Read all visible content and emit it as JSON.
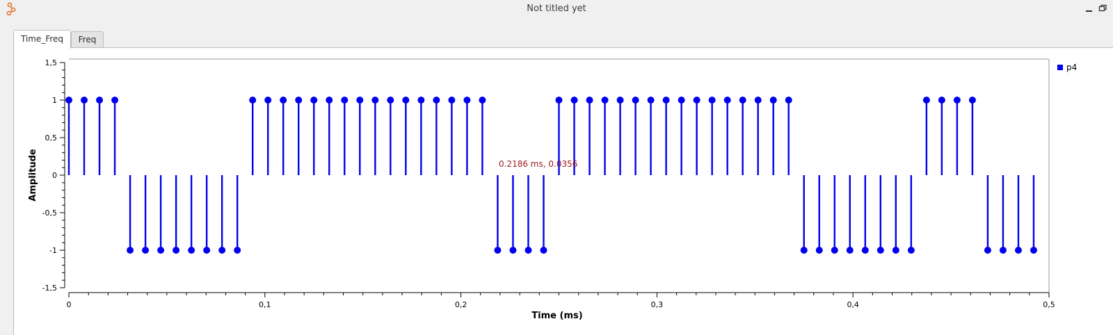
{
  "window": {
    "title": "Not titled yet",
    "icon": "gnuradio-icon"
  },
  "tabs": [
    {
      "label": "Time_Freq",
      "active": true
    },
    {
      "label": "Freq",
      "active": false
    }
  ],
  "colors": {
    "series": "#0000ee",
    "cursor_text": "#9b1a1a",
    "axis": "#000000"
  },
  "cursor_readout": "0.2186 ms, 0.0356",
  "chart_data": {
    "type": "scatter",
    "style": "stem",
    "xlabel": "Time (ms)",
    "ylabel": "Amplitude",
    "xlim": [
      0,
      0.5
    ],
    "ylim": [
      -1.5,
      1.5
    ],
    "x_ticks": [
      {
        "value": 0,
        "label": "0"
      },
      {
        "value": 0.1,
        "label": "0,1"
      },
      {
        "value": 0.2,
        "label": "0,2"
      },
      {
        "value": 0.3,
        "label": "0,3"
      },
      {
        "value": 0.4,
        "label": "0,4"
      },
      {
        "value": 0.5,
        "label": "0,5"
      }
    ],
    "y_ticks": [
      {
        "value": 1.5,
        "label": "1,5"
      },
      {
        "value": 1,
        "label": "1"
      },
      {
        "value": 0.5,
        "label": "0,5"
      },
      {
        "value": 0,
        "label": "0"
      },
      {
        "value": -0.5,
        "label": "-0,5"
      },
      {
        "value": -1,
        "label": "-1"
      },
      {
        "value": -1.5,
        "label": "-1,5"
      }
    ],
    "grid": false,
    "legend_position": "top-right",
    "series": [
      {
        "name": "p4",
        "x_start": 0,
        "x_step": 0.0078125,
        "values": [
          1,
          1,
          1,
          1,
          -1,
          -1,
          -1,
          -1,
          -1,
          -1,
          -1,
          -1,
          1,
          1,
          1,
          1,
          1,
          1,
          1,
          1,
          1,
          1,
          1,
          1,
          1,
          1,
          1,
          1,
          -1,
          -1,
          -1,
          -1,
          1,
          1,
          1,
          1,
          1,
          1,
          1,
          1,
          1,
          1,
          1,
          1,
          1,
          1,
          1,
          1,
          -1,
          -1,
          -1,
          -1,
          -1,
          -1,
          -1,
          -1,
          1,
          1,
          1,
          1,
          -1,
          -1,
          -1,
          -1
        ]
      }
    ]
  }
}
